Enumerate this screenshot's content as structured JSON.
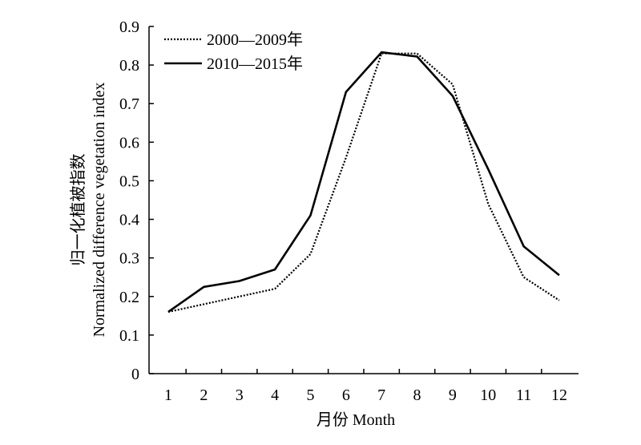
{
  "chart_data": {
    "type": "line",
    "xlabel": "月份 Month",
    "ylabel_line1": "归一化植被指数",
    "ylabel_line2": "Normalized difference vegetation index",
    "x": [
      1,
      2,
      3,
      4,
      5,
      6,
      7,
      8,
      9,
      10,
      11,
      12
    ],
    "xticks": [
      "1",
      "2",
      "3",
      "4",
      "5",
      "6",
      "7",
      "8",
      "9",
      "10",
      "11",
      "12"
    ],
    "ylim": [
      0,
      0.9
    ],
    "yticks": [
      "0",
      "0.1",
      "0.2",
      "0.3",
      "0.4",
      "0.5",
      "0.6",
      "0.7",
      "0.8",
      "0.9"
    ],
    "grid": false,
    "legend_position": "top-left",
    "series": [
      {
        "name": "2000—2009年",
        "style": "dotted",
        "color": "#000000",
        "values": [
          0.16,
          0.18,
          0.2,
          0.22,
          0.31,
          0.56,
          0.83,
          0.83,
          0.75,
          0.44,
          0.25,
          0.19
        ]
      },
      {
        "name": "2010—2015年",
        "style": "solid",
        "color": "#000000",
        "values": [
          0.16,
          0.225,
          0.24,
          0.27,
          0.41,
          0.73,
          0.833,
          0.822,
          0.72,
          0.53,
          0.33,
          0.255
        ]
      }
    ]
  }
}
